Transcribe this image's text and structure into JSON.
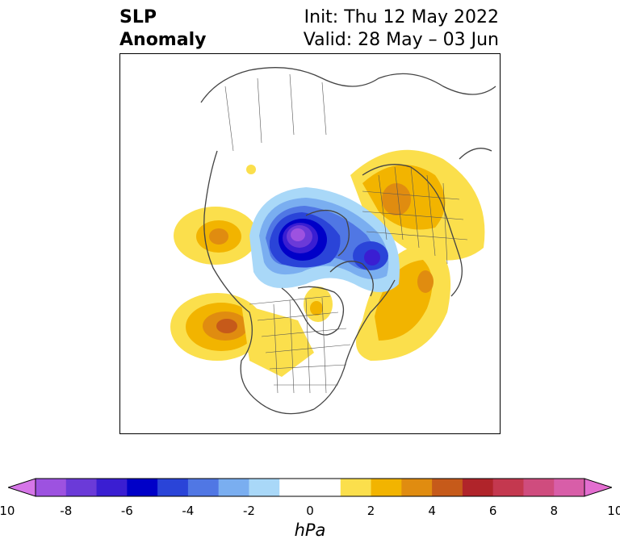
{
  "header": {
    "title_line1": "SLP",
    "title_line2": "Anomaly",
    "init_text": "Init: Thu 12 May 2022",
    "valid_text": "Valid: 28 May – 03 Jun"
  },
  "colorbar": {
    "unit_label": "hPa",
    "ticks": [
      "-10",
      "-8",
      "-6",
      "-4",
      "-2",
      "0",
      "2",
      "4",
      "6",
      "8",
      "10"
    ],
    "min": -10,
    "max": 10,
    "interval": 1,
    "colors": [
      "#d676e8",
      "#9d52e0",
      "#6b3ad8",
      "#3a1ed2",
      "#0000c8",
      "#2a44d8",
      "#5077e4",
      "#7aaef0",
      "#a9d8f8",
      "#ffffff",
      "#ffffff",
      "#fbdf4c",
      "#f2b400",
      "#e08c10",
      "#c65a1a",
      "#b0242a",
      "#c4384f",
      "#cf4c7e",
      "#d85ea8",
      "#e36ed0"
    ],
    "extend": "both"
  },
  "map": {
    "projection": "north-polar-stereographic",
    "colors": {
      "land_outline": "#444444",
      "state_outline": "#555555"
    }
  }
}
